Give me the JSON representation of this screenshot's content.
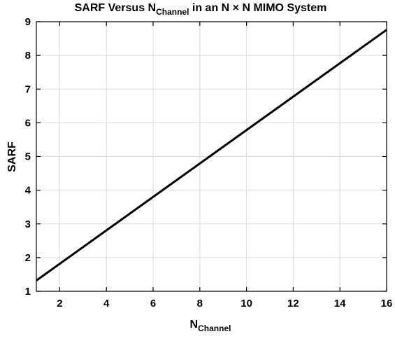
{
  "chart_data": {
    "type": "line",
    "title_parts": {
      "prefix": "SARF Versus N",
      "subscript": "Channel",
      "suffix": " in an N × N MIMO System"
    },
    "xlabel_parts": {
      "main": "N",
      "subscript": "Channel"
    },
    "ylabel": "SARF",
    "xlim": [
      1,
      16
    ],
    "ylim": [
      1,
      9
    ],
    "xticks": [
      2,
      4,
      6,
      8,
      10,
      12,
      14,
      16
    ],
    "yticks": [
      1,
      2,
      3,
      4,
      5,
      6,
      7,
      8,
      9
    ],
    "grid": true,
    "series": [
      {
        "x": [
          1,
          16
        ],
        "y": [
          1.32,
          8.76
        ],
        "color": "#000000"
      }
    ]
  }
}
